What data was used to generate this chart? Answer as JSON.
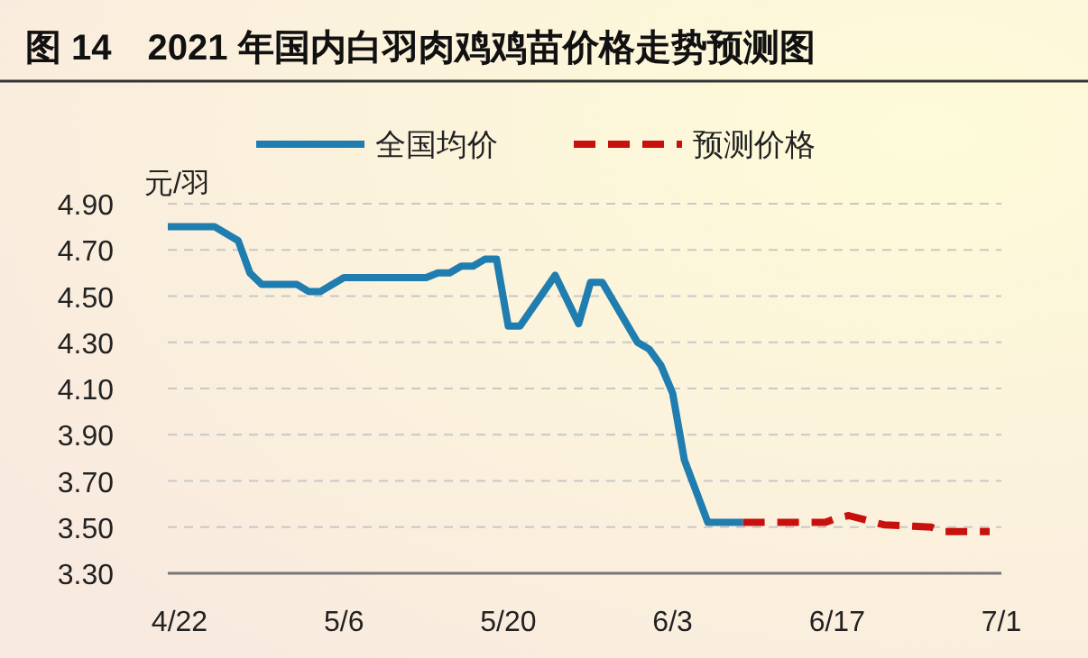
{
  "chart_data": {
    "type": "line",
    "title": "图 14　2021 年国内白羽肉鸡鸡苗价格走势预测图",
    "ylabel": "元/羽",
    "series": [
      {
        "name": "全国均价",
        "color": "#1f7db0",
        "line_style": "solid",
        "x": [
          "2021-04-21",
          "2021-04-25",
          "2021-04-27",
          "2021-04-28",
          "2021-04-29",
          "2021-05-02",
          "2021-05-03",
          "2021-05-04",
          "2021-05-06",
          "2021-05-13",
          "2021-05-14",
          "2021-05-15",
          "2021-05-16",
          "2021-05-17",
          "2021-05-18",
          "2021-05-19",
          "2021-05-20",
          "2021-05-21",
          "2021-05-24",
          "2021-05-26",
          "2021-05-27",
          "2021-05-28",
          "2021-05-31",
          "2021-06-01",
          "2021-06-02",
          "2021-06-03",
          "2021-06-04",
          "2021-06-06",
          "2021-06-09"
        ],
        "values": [
          4.8,
          4.8,
          4.74,
          4.6,
          4.55,
          4.55,
          4.52,
          4.52,
          4.58,
          4.58,
          4.6,
          4.6,
          4.63,
          4.63,
          4.66,
          4.66,
          4.37,
          4.37,
          4.59,
          4.38,
          4.56,
          4.56,
          4.3,
          4.27,
          4.2,
          4.08,
          3.79,
          3.52,
          3.52
        ]
      },
      {
        "name": "预测价格",
        "color": "#c8100c",
        "line_style": "dashed",
        "x": [
          "2021-06-09",
          "2021-06-16",
          "2021-06-17",
          "2021-06-18",
          "2021-06-21",
          "2021-06-25",
          "2021-06-26",
          "2021-06-30"
        ],
        "values": [
          3.52,
          3.52,
          3.54,
          3.55,
          3.51,
          3.5,
          3.48,
          3.48
        ]
      }
    ],
    "xlim": [
      "2021-04-21",
      "2021-07-01"
    ],
    "xticks": [
      {
        "value": "2021-04-22",
        "label": "4/22"
      },
      {
        "value": "2021-05-06",
        "label": "5/6"
      },
      {
        "value": "2021-05-20",
        "label": "5/20"
      },
      {
        "value": "2021-06-03",
        "label": "6/3"
      },
      {
        "value": "2021-06-17",
        "label": "6/17"
      },
      {
        "value": "2021-07-01",
        "label": "7/1"
      }
    ],
    "ylim": [
      3.3,
      4.9
    ],
    "yticks": [
      {
        "value": 3.3,
        "label": "3.30"
      },
      {
        "value": 3.5,
        "label": "3.50"
      },
      {
        "value": 3.7,
        "label": "3.70"
      },
      {
        "value": 3.9,
        "label": "3.90"
      },
      {
        "value": 4.1,
        "label": "4.10"
      },
      {
        "value": 4.3,
        "label": "4.30"
      },
      {
        "value": 4.5,
        "label": "4.50"
      },
      {
        "value": 4.7,
        "label": "4.70"
      },
      {
        "value": 4.9,
        "label": "4.90"
      }
    ],
    "grid": "y",
    "legend": "top"
  }
}
